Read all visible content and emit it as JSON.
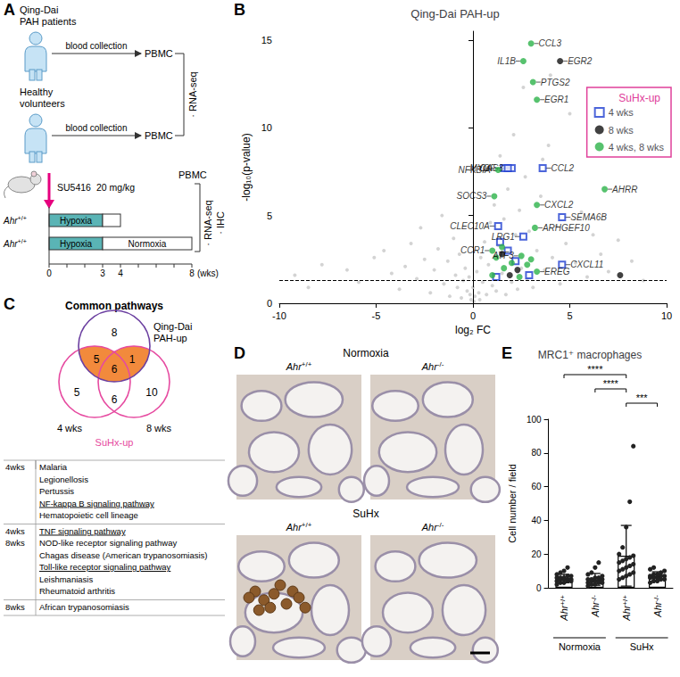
{
  "panel_letters": [
    "A",
    "B",
    "C",
    "D",
    "E"
  ],
  "schematic": {
    "human_groups": [
      {
        "lines": [
          "Qing-Dai",
          "PAH patients"
        ]
      },
      {
        "lines": [
          "Healthy",
          "volunteers"
        ]
      }
    ],
    "arrow_label": "blood collection",
    "sample": "PBMC",
    "human_assays": [
      "· RNA-seq"
    ],
    "treatment": "SU5416",
    "dose": "20 mg/kg",
    "genotype": "Ahr+/+",
    "conditions": [
      "Hypoxia",
      "Normoxia"
    ],
    "timelines": [
      {
        "hypoxia": [
          0,
          3
        ],
        "normoxia": [
          3,
          4
        ]
      },
      {
        "hypoxia": [
          0,
          3
        ],
        "normoxia": [
          3,
          8
        ]
      }
    ],
    "mouse_assays": [
      "· RNA-seq",
      "· IHC"
    ],
    "week_ticks": [
      0,
      1,
      2,
      3,
      4,
      5,
      6,
      7,
      8
    ],
    "week_labels": [
      0,
      3,
      4,
      8
    ],
    "week_unit": "(wks)"
  },
  "venn": {
    "title": "Common pathways",
    "sets": [
      "Qing-Dai PAH-up",
      "4 wks",
      "8 wks"
    ],
    "group_label": "SuHx-up",
    "regions": {
      "qd_only": 8,
      "qd_4wks": 5,
      "qd_4wks_8wks": 6,
      "qd_8wks": 1,
      "4wks_only": 5,
      "4wks_8wks": 6,
      "8wks_only": 10
    }
  },
  "pathways": [
    {
      "label": [
        "4wks"
      ],
      "items": [
        {
          "text": "Malaria"
        },
        {
          "text": "Legionellosis"
        },
        {
          "text": "Pertussis"
        },
        {
          "text": "NF-kappa B signaling pathway",
          "underlined": true
        },
        {
          "text": "Hematopoietic cell lineage"
        }
      ]
    },
    {
      "label": [
        "4wks",
        "8wks"
      ],
      "items": [
        {
          "text": "TNF signaling pathway",
          "underlined": true
        },
        {
          "text": "NOD-like receptor signaling pathway"
        },
        {
          "text": "Chagas disease (American trypanosomiasis)"
        },
        {
          "text": "Toll-like receptor signaling pathway",
          "underlined": true
        },
        {
          "text": "Leishmaniasis"
        },
        {
          "text": "Rheumatoid arthritis"
        }
      ]
    },
    {
      "label": [
        "8wks"
      ],
      "items": [
        {
          "text": "African trypanosomiasis"
        }
      ]
    }
  ],
  "micrographs": {
    "rows": [
      "Normoxia",
      "SuHx"
    ],
    "columns": [
      "Ahr+/+",
      "Ahr-/-"
    ]
  },
  "chart_data": [
    {
      "type": "scatter",
      "title": "Qing-Dai PAH-up",
      "x_label": "log₂ FC",
      "y_label": "-log₁₀(p-value)",
      "xlim": [
        -10,
        10
      ],
      "xticks": [
        -10,
        -5,
        0,
        5,
        10
      ],
      "ylim": [
        0,
        15.5
      ],
      "yticks": [
        0,
        5,
        10,
        15
      ],
      "thresholds": {
        "x": 0,
        "y": 1.3
      },
      "legend": "right",
      "legend_title": "SuHx-up",
      "series": [
        {
          "color": "#c8c8c8",
          "marker": "circle",
          "x": [
            -7.8,
            -6.5,
            -5.9,
            -5.1,
            -4.6,
            -4.2,
            -3.8,
            -3.5,
            -3.2,
            -2.9,
            -2.7,
            -2.5,
            -2.2,
            -2.0,
            -1.8,
            -1.6,
            -1.5,
            -1.3,
            -1.2,
            -1.0,
            -0.9,
            -0.8,
            -0.7,
            -0.6,
            -0.5,
            -0.4,
            -0.3,
            -0.2,
            -0.1,
            0,
            0.1,
            0.2,
            0.3,
            0.4,
            0.5,
            0.6,
            0.7,
            0.8,
            0.9,
            1.0,
            1.1,
            1.2,
            1.3,
            1.4,
            1.5,
            1.6,
            1.7,
            1.8,
            1.9,
            2.0,
            2.1,
            2.2,
            2.3,
            2.4,
            2.5,
            2.7,
            2.8,
            2.9,
            3.1,
            3.3,
            3.5,
            3.7,
            3.9,
            4.1,
            4.3,
            4.5,
            4.8,
            5.0,
            5.3,
            5.6,
            5.9,
            6.2,
            6.6,
            7.0,
            7.5,
            8.2,
            8.8,
            -8.5,
            -9.2,
            0.05,
            -0.15,
            0.35,
            2.6,
            3.6,
            4.0
          ],
          "y": [
            2.2,
            1.9,
            1.2,
            2.6,
            3.0,
            1.7,
            0.8,
            2.1,
            3.4,
            1.4,
            4.3,
            2.5,
            0.6,
            1.9,
            3.1,
            5.0,
            1.1,
            2.4,
            0.4,
            3.7,
            1.6,
            0.9,
            2.8,
            0.3,
            1.3,
            2.0,
            0.7,
            1.5,
            0.2,
            0.9,
            0.4,
            1.8,
            0.6,
            2.6,
            1.2,
            3.5,
            0.5,
            2.2,
            4.6,
            1.0,
            5.6,
            0.7,
            3.3,
            8.4,
            1.7,
            4.8,
            0.5,
            6.5,
            2.9,
            1.2,
            9.6,
            3.9,
            0.8,
            5.3,
            2.0,
            7.2,
            1.4,
            4.1,
            0.9,
            3.0,
            6.1,
            1.9,
            9.0,
            2.6,
            4.4,
            1.1,
            3.4,
            10.8,
            2.3,
            5.2,
            1.5,
            3.9,
            2.8,
            1.8,
            3.6,
            2.4,
            1.3,
            0.9,
            1.6,
            0.1,
            0.5,
            0.2,
            12.3,
            8.2,
            13.0
          ]
        },
        {
          "name": "4 wks",
          "color": "#1f3fd1",
          "marker": "square_open",
          "x": [
            1.6,
            2.0,
            1.8,
            3.6,
            4.6,
            1.3,
            2.6,
            4.6,
            1.4,
            1.8,
            2.2,
            2.9,
            1.2
          ],
          "y": [
            7.7,
            7.7,
            7.7,
            7.7,
            4.9,
            4.4,
            3.8,
            2.2,
            3.5,
            3.0,
            2.4,
            1.6,
            1.5
          ],
          "labels": [
            "MYOF",
            "OAS3",
            null,
            "CCL2",
            "SEMA6B",
            "CLEC10A",
            "LRG1",
            "CXCL11",
            null,
            null,
            null,
            null,
            null
          ]
        },
        {
          "name": "8 wks",
          "color": "#111111",
          "marker": "circle",
          "x": [
            4.5,
            7.6,
            1.5,
            2.3,
            1.9
          ],
          "y": [
            13.8,
            1.6,
            2.8,
            1.9,
            1.6
          ],
          "labels": [
            "EGR2",
            null,
            null,
            null,
            null
          ]
        },
        {
          "name": "4 wks, 8 wks",
          "color": "#2db34a",
          "marker": "circle",
          "x": [
            3.0,
            2.6,
            3.1,
            3.3,
            1.3,
            6.8,
            1.1,
            3.3,
            3.2,
            1.0,
            2.5,
            3.3,
            1.5,
            1.2,
            2.0,
            1.6,
            2.8,
            1.0,
            2.4,
            3.0
          ],
          "y": [
            14.8,
            13.8,
            12.6,
            11.6,
            7.6,
            6.5,
            6.1,
            5.6,
            4.3,
            3.0,
            2.7,
            1.8,
            3.2,
            2.6,
            2.3,
            2.0,
            2.2,
            1.6,
            1.5,
            2.5
          ],
          "labels": [
            "CCL3",
            "IL1B",
            "PTGS2",
            "EGR1",
            "NFKBIA",
            "AHRR",
            "SOCS3",
            "CXCL2",
            "ARHGEF10",
            "CCR1",
            "ATF3",
            "EREG",
            null,
            null,
            null,
            null,
            null,
            null,
            null,
            null
          ]
        }
      ]
    },
    {
      "type": "bar",
      "title": "MRC1⁺ macrophages",
      "categories": [
        "Ahr+/+",
        "Ahr-/-",
        "Ahr+/+",
        "Ahr-/-"
      ],
      "groups": [
        {
          "label": "Normoxia",
          "categories": [
            0,
            1
          ]
        },
        {
          "label": "SuHx",
          "categories": [
            2,
            3
          ]
        }
      ],
      "values": [
        5.5,
        5,
        19,
        7
      ],
      "errors": [
        2.5,
        3.5,
        18,
        2.5
      ],
      "points": [
        [
          2,
          3,
          3,
          4,
          4,
          4,
          5,
          5,
          5,
          5,
          6,
          6,
          6,
          7,
          7,
          8,
          9,
          10,
          12
        ],
        [
          1,
          2,
          2,
          3,
          3,
          3,
          4,
          4,
          4,
          5,
          5,
          5,
          6,
          6,
          7,
          8,
          9,
          12,
          15
        ],
        [
          5,
          6,
          7,
          8,
          9,
          10,
          11,
          12,
          13,
          14,
          15,
          16,
          17,
          18,
          19,
          20,
          24,
          36,
          51,
          84
        ],
        [
          3,
          4,
          4,
          5,
          5,
          6,
          6,
          6,
          7,
          7,
          7,
          8,
          8,
          9,
          10,
          11,
          12
        ]
      ],
      "color": "#000000",
      "ylim": [
        0,
        100
      ],
      "yticks": [
        0,
        20,
        40,
        60,
        80,
        100
      ],
      "y_label": "Cell number / field",
      "significance": [
        {
          "pair": [
            0,
            2
          ],
          "label": "****"
        },
        {
          "pair": [
            1,
            2
          ],
          "label": "****"
        },
        {
          "pair": [
            2,
            3
          ],
          "label": "***"
        }
      ]
    }
  ]
}
